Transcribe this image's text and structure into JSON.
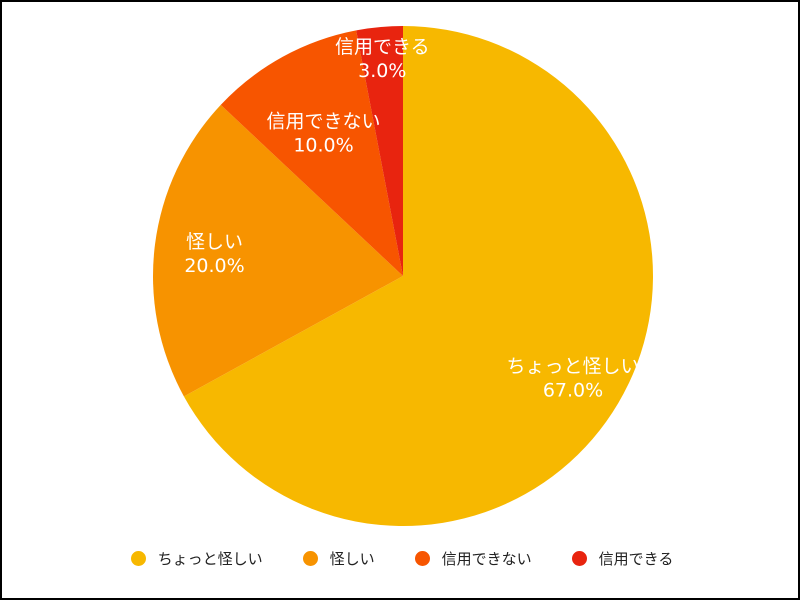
{
  "chart_data": {
    "type": "pie",
    "categories": [
      "ちょっと怪しい",
      "怪しい",
      "信用できない",
      "信用できる"
    ],
    "values": [
      67.0,
      20.0,
      10.0,
      3.0
    ],
    "value_labels": [
      "67.0%",
      "20.0%",
      "10.0%",
      "3.0%"
    ],
    "colors": [
      "#F7B800",
      "#F79300",
      "#F75500",
      "#E8240F"
    ],
    "start": "12 o'clock",
    "direction": "clockwise",
    "legend_position": "bottom",
    "label_color": "#ffffff"
  }
}
